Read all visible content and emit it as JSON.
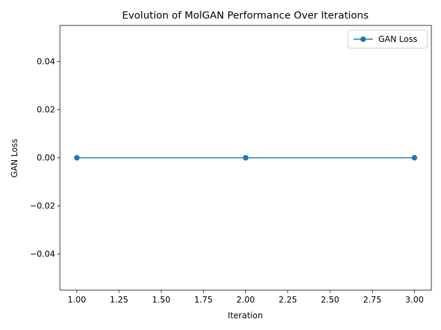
{
  "chart_data": {
    "type": "line",
    "title": "Evolution of MolGAN Performance Over Iterations",
    "xlabel": "Iteration",
    "ylabel": "GAN Loss",
    "xlim": [
      0.9,
      3.1
    ],
    "ylim": [
      -0.055,
      0.055
    ],
    "x_ticks": [
      1.0,
      1.25,
      1.5,
      1.75,
      2.0,
      2.25,
      2.5,
      2.75,
      3.0
    ],
    "x_tick_labels": [
      "1.00",
      "1.25",
      "1.50",
      "1.75",
      "2.00",
      "2.25",
      "2.50",
      "2.75",
      "3.00"
    ],
    "y_ticks": [
      0.04,
      0.02,
      0.0,
      -0.02,
      -0.04
    ],
    "y_tick_labels": [
      "0.04",
      "0.02",
      "0.00",
      "−0.02",
      "−0.04"
    ],
    "grid": false,
    "legend_position": "top-right",
    "series": [
      {
        "name": "GAN Loss",
        "color": "#1f77b4",
        "marker": "circle",
        "x": [
          1,
          2,
          3
        ],
        "y": [
          0,
          0,
          0
        ]
      }
    ]
  }
}
